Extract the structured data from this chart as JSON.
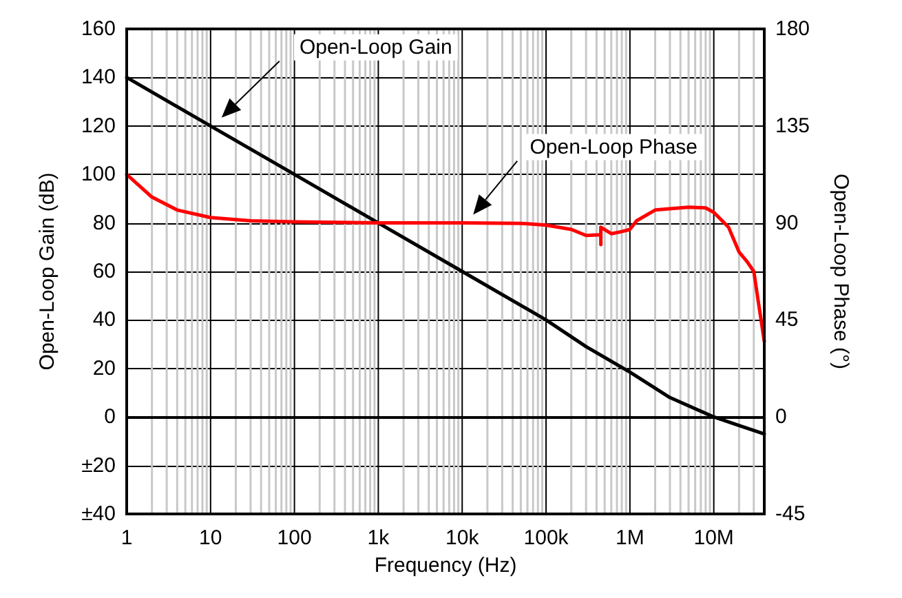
{
  "chart_data": {
    "type": "line",
    "xlabel": "Frequency (Hz)",
    "ylabel": "Open-Loop Gain (dB)",
    "y2label": "Open-Loop Phase (°)",
    "series": [
      {
        "name": "Open-Loop Gain",
        "color": "#000000",
        "x": [
          1,
          10,
          100,
          1000,
          10000,
          100000,
          300000,
          1000000,
          3000000,
          10000000,
          20000000,
          40000000
        ],
        "values": [
          140,
          120,
          100,
          80,
          60,
          40,
          29,
          18.5,
          8,
          0,
          -3.5,
          -7
        ]
      },
      {
        "name": "Open-Loop Phase",
        "color": "#ff0000",
        "axis": "y2",
        "x": [
          1,
          2,
          4,
          10,
          30,
          100,
          1000,
          10000,
          50000,
          100000,
          200000,
          300000,
          450000,
          450000,
          450000,
          600000,
          800000,
          1000000,
          1200000,
          2000000,
          5000000,
          8000000,
          10000000,
          15000000,
          20000000,
          25000000,
          30000000,
          35000000,
          40000000
        ],
        "values": [
          112.5,
          102,
          96,
          92.5,
          91,
          90.5,
          90,
          90,
          89.8,
          89,
          87,
          84.2,
          84.5,
          80,
          88,
          85,
          86,
          87,
          91,
          96,
          97.3,
          97,
          94.9,
          88,
          76.5,
          72,
          67.5,
          50,
          35
        ]
      }
    ],
    "xlim": [
      1,
      40000000
    ],
    "xticks": [
      1,
      10,
      100,
      {
        "value": 1000,
        "label": "1k"
      },
      {
        "value": 10000,
        "label": "10k"
      },
      {
        "value": 100000,
        "label": "100k"
      },
      {
        "value": 1000000,
        "label": "1M"
      },
      {
        "value": 10000000,
        "label": "10M"
      }
    ],
    "ylim": [
      -40,
      160
    ],
    "yticks": [
      {
        "value": -40,
        "label": "±40"
      },
      {
        "value": -20,
        "label": "±20"
      },
      0,
      20,
      40,
      60,
      80,
      100,
      120,
      140,
      160
    ],
    "y2lim": [
      -45,
      180
    ],
    "y2ticks": [
      -45,
      0,
      45,
      90,
      135,
      180
    ],
    "log": "x",
    "grid": true,
    "legend": false,
    "line_style": "solid"
  }
}
